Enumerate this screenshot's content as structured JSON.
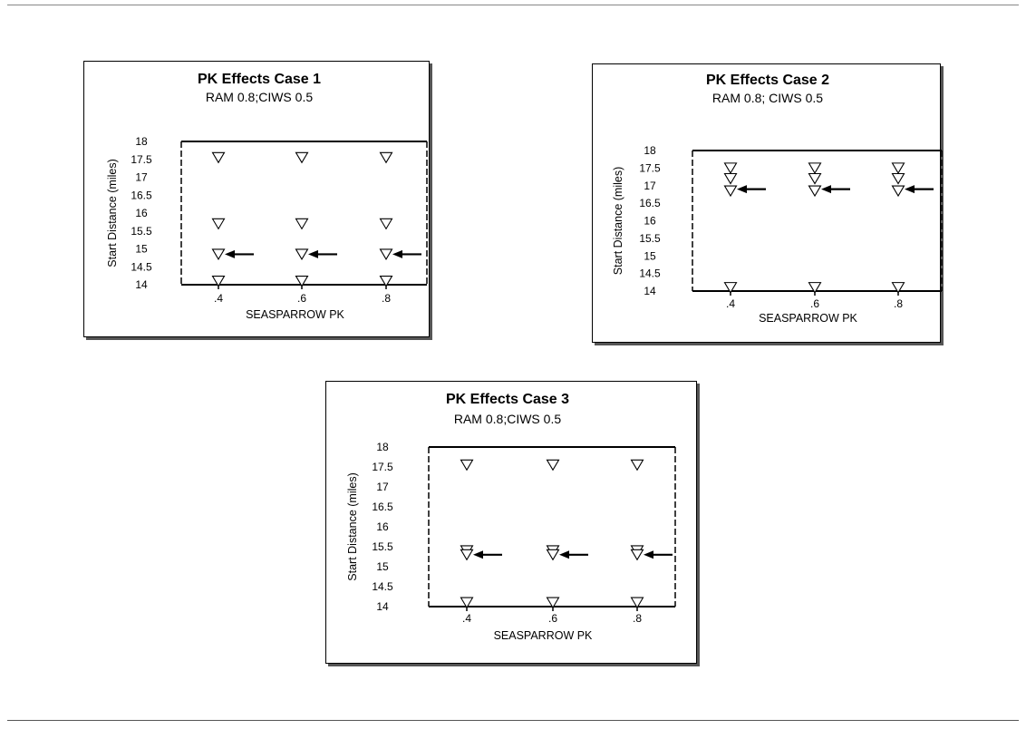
{
  "page": {
    "background": "#ffffff",
    "ink": "#000000"
  },
  "chart_data": [
    {
      "type": "scatter",
      "title": "PK Effects Case 1",
      "subtitle": "RAM 0.8;CIWS 0.5",
      "xlabel": "SEASPARROW PK",
      "ylabel": "Start Distance (miles)",
      "ylim": [
        14,
        18
      ],
      "x_ticks": [
        ".4",
        ".6",
        ".8"
      ],
      "y_ticks": [
        "14",
        "14.5",
        "15",
        "15.5",
        "16",
        "16.5",
        "17",
        "17.5",
        "18"
      ],
      "marker": "triangle-down",
      "grid": false,
      "series": [
        {
          "points": [
            {
              "x": 0.4,
              "y": 17.55
            },
            {
              "x": 0.4,
              "y": 15.7
            },
            {
              "x": 0.4,
              "y": 14.85
            },
            {
              "x": 0.4,
              "y": 14.1
            },
            {
              "x": 0.6,
              "y": 17.55
            },
            {
              "x": 0.6,
              "y": 15.7
            },
            {
              "x": 0.6,
              "y": 14.85
            },
            {
              "x": 0.6,
              "y": 14.1
            },
            {
              "x": 0.8,
              "y": 17.55
            },
            {
              "x": 0.8,
              "y": 15.7
            },
            {
              "x": 0.8,
              "y": 14.85
            },
            {
              "x": 0.8,
              "y": 14.1
            }
          ]
        }
      ],
      "annotations": [
        {
          "type": "arrow",
          "points_to": {
            "x": 0.4,
            "y": 14.85
          }
        },
        {
          "type": "arrow",
          "points_to": {
            "x": 0.6,
            "y": 14.85
          }
        },
        {
          "type": "arrow",
          "points_to": {
            "x": 0.8,
            "y": 14.85
          }
        }
      ]
    },
    {
      "type": "scatter",
      "title": "PK Effects Case 2",
      "subtitle": "RAM 0.8; CIWS 0.5",
      "xlabel": "SEASPARROW PK",
      "ylabel": "Start Distance (miles)",
      "ylim": [
        14,
        18
      ],
      "x_ticks": [
        ".4",
        ".6",
        ".8"
      ],
      "y_ticks": [
        "14",
        "14.5",
        "15",
        "15.5",
        "16",
        "16.5",
        "17",
        "17.5",
        "18"
      ],
      "marker": "triangle-down",
      "grid": false,
      "series": [
        {
          "points": [
            {
              "x": 0.4,
              "y": 17.5
            },
            {
              "x": 0.4,
              "y": 17.2
            },
            {
              "x": 0.4,
              "y": 16.85
            },
            {
              "x": 0.4,
              "y": 14.1
            },
            {
              "x": 0.6,
              "y": 17.5
            },
            {
              "x": 0.6,
              "y": 17.2
            },
            {
              "x": 0.6,
              "y": 16.85
            },
            {
              "x": 0.6,
              "y": 14.1
            },
            {
              "x": 0.8,
              "y": 17.5
            },
            {
              "x": 0.8,
              "y": 17.2
            },
            {
              "x": 0.8,
              "y": 16.85
            },
            {
              "x": 0.8,
              "y": 14.1
            }
          ]
        }
      ],
      "annotations": [
        {
          "type": "arrow",
          "points_to": {
            "x": 0.4,
            "y": 16.9
          }
        },
        {
          "type": "arrow",
          "points_to": {
            "x": 0.6,
            "y": 16.9
          }
        },
        {
          "type": "arrow",
          "points_to": {
            "x": 0.8,
            "y": 16.9
          }
        }
      ]
    },
    {
      "type": "scatter",
      "title": "PK Effects Case 3",
      "subtitle": "RAM 0.8;CIWS 0.5",
      "xlabel": "SEASPARROW PK",
      "ylabel": "Start Distance (miles)",
      "ylim": [
        14,
        18
      ],
      "x_ticks": [
        ".4",
        ".6",
        ".8"
      ],
      "y_ticks": [
        "14",
        "14.5",
        "15",
        "15.5",
        "16",
        "16.5",
        "17",
        "17.5",
        "18"
      ],
      "marker": "triangle-down",
      "grid": false,
      "series": [
        {
          "points": [
            {
              "x": 0.4,
              "y": 17.55
            },
            {
              "x": 0.4,
              "y": 15.4
            },
            {
              "x": 0.4,
              "y": 15.3
            },
            {
              "x": 0.4,
              "y": 14.1
            },
            {
              "x": 0.6,
              "y": 17.55
            },
            {
              "x": 0.6,
              "y": 15.4
            },
            {
              "x": 0.6,
              "y": 15.3
            },
            {
              "x": 0.6,
              "y": 14.1
            },
            {
              "x": 0.8,
              "y": 17.55
            },
            {
              "x": 0.8,
              "y": 15.4
            },
            {
              "x": 0.8,
              "y": 15.3
            },
            {
              "x": 0.8,
              "y": 14.1
            }
          ]
        }
      ],
      "annotations": [
        {
          "type": "arrow",
          "points_to": {
            "x": 0.4,
            "y": 15.3
          }
        },
        {
          "type": "arrow",
          "points_to": {
            "x": 0.6,
            "y": 15.3
          }
        },
        {
          "type": "arrow",
          "points_to": {
            "x": 0.8,
            "y": 15.3
          }
        }
      ]
    }
  ]
}
